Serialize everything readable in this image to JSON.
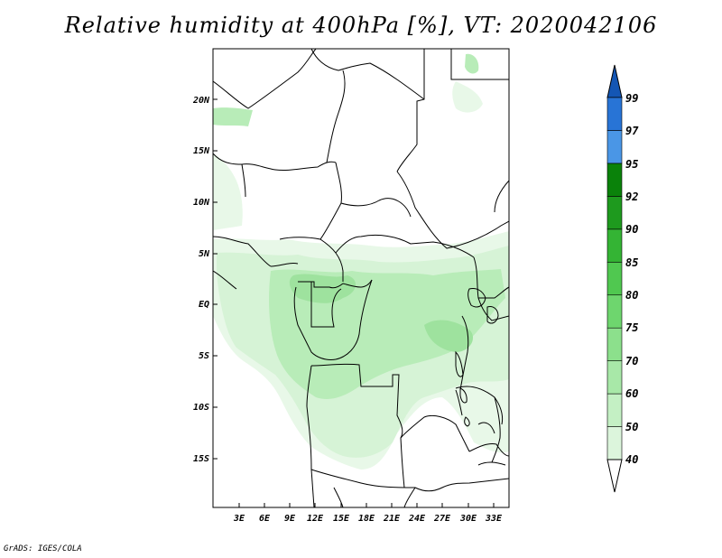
{
  "title": "Relative humidity at 400hPa [%], VT: 2020042106",
  "credit": "GrADS: IGES/COLA",
  "map": {
    "lat_labels": [
      "20N",
      "15N",
      "10N",
      "5N",
      "EQ",
      "5S",
      "10S",
      "15S"
    ],
    "lon_labels": [
      "3E",
      "6E",
      "9E",
      "12E",
      "15E",
      "18E",
      "21E",
      "24E",
      "27E",
      "30E",
      "33E"
    ]
  },
  "colorbar": {
    "labels": [
      "40",
      "50",
      "60",
      "70",
      "75",
      "80",
      "85",
      "90",
      "92",
      "95",
      "97",
      "99"
    ],
    "colors": [
      "#f0fcf0",
      "#dcf5dc",
      "#c4f0c4",
      "#a8e8a8",
      "#8ce08c",
      "#6ed66e",
      "#50c850",
      "#34b434",
      "#1e9a1e",
      "#0a820a",
      "#4a96e6",
      "#2874d6",
      "#1456b4"
    ]
  }
}
